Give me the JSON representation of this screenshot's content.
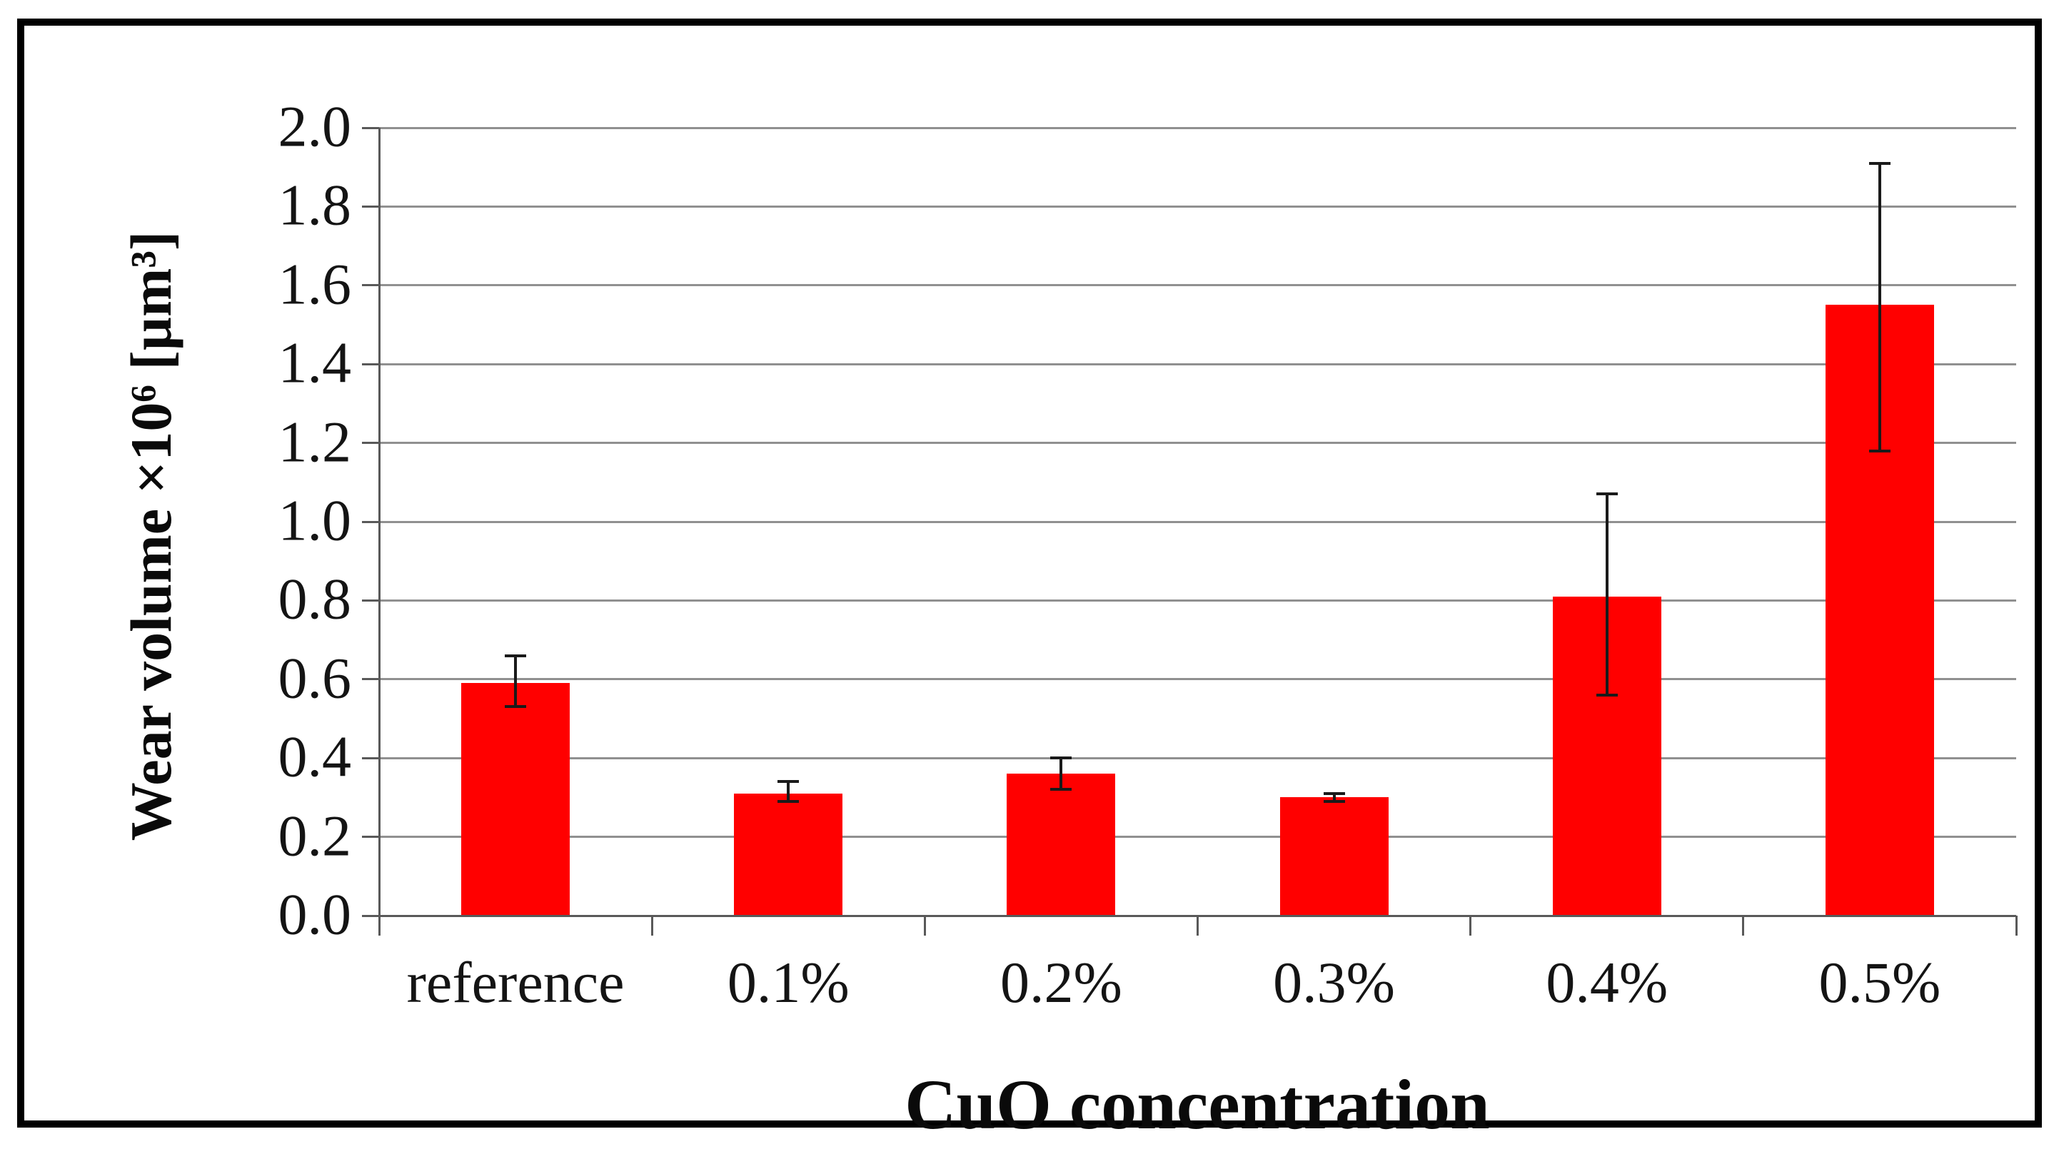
{
  "figure": {
    "background_color": "#ffffff",
    "frame_color": "#000000"
  },
  "chart_data": {
    "type": "bar",
    "title": "",
    "xlabel": "CuO concentration",
    "ylabel": "Wear volume ×10⁶ [µm³]",
    "categories": [
      "reference",
      "0.1%",
      "0.2%",
      "0.3%",
      "0.4%",
      "0.5%"
    ],
    "values": [
      0.59,
      0.31,
      0.36,
      0.3,
      0.81,
      1.55
    ],
    "error_low": [
      0.53,
      0.29,
      0.32,
      0.29,
      0.56,
      1.18
    ],
    "error_high": [
      0.66,
      0.34,
      0.4,
      0.31,
      1.07,
      1.91
    ],
    "ylim": [
      0.0,
      2.0
    ],
    "ytick_step": 0.2,
    "ytick_labels": [
      "0.0",
      "0.2",
      "0.4",
      "0.6",
      "0.8",
      "1.0",
      "1.2",
      "1.4",
      "1.6",
      "1.8",
      "2.0"
    ],
    "grid": true,
    "legend": false,
    "bar_color": "#ff0000",
    "error_bar_color": "#1a1a1a",
    "gridline_color": "#909090",
    "axis_color": "#595959",
    "text_color": "#141414"
  }
}
